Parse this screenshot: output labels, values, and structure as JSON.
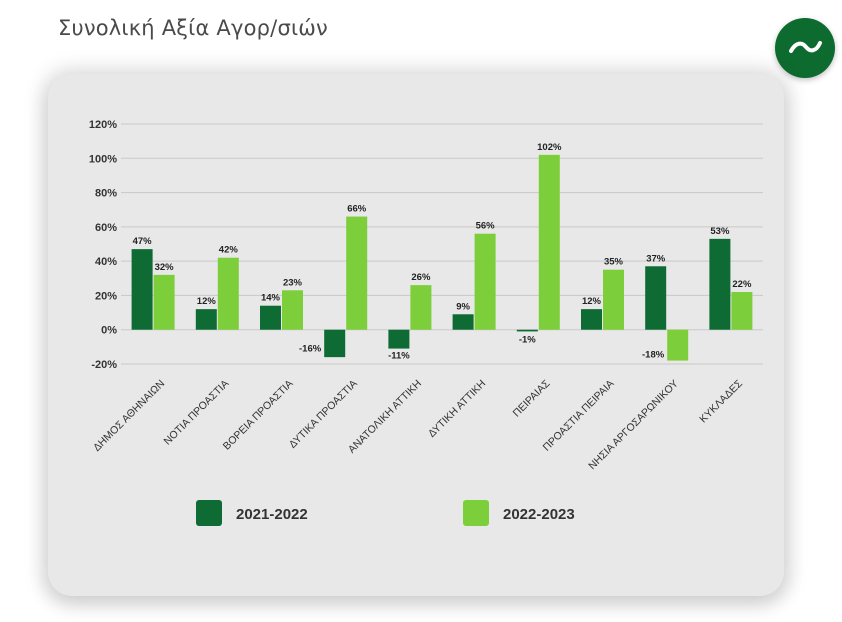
{
  "page": {
    "title": "Συνολική Αξία Αγορ/σιών"
  },
  "colors": {
    "series_2021": "#0d6b33",
    "series_2022": "#7ccf3a",
    "grid": "#c9c9c9",
    "logo": "#0e6b2f"
  },
  "logo": {
    "icon": "tilde-wave-icon"
  },
  "chart_data": {
    "type": "bar",
    "title": "Συνολική Αξία Αγορ/σιών",
    "categories": [
      "ΔΗΜΟΣ ΑΘΗΝΑΙΩΝ",
      "ΝΟΤΙΑ ΠΡΟΑΣΤΙΑ",
      "ΒΟΡΕΙΑ ΠΡΟΑΣΤΙΑ",
      "ΔΥΤΙΚΑ ΠΡΟΑΣΤΙΑ",
      "ΑΝΑΤΟΛΙΚΗ ΑΤΤΙΚΗ",
      "ΔΥΤΙΚΗ ΑΤΤΙΚΗ",
      "ΠΕΙΡΑΙΑΣ",
      "ΠΡΟΑΣΤΙΑ ΠΕΙΡΑΙΑ",
      "ΝΗΣΙΑ ΑΡΓΟΣΑΡΩΝΙΚΟΥ",
      "ΚΥΚΛΑΔΕΣ"
    ],
    "series": [
      {
        "name": "2021-2022",
        "values": [
          47,
          12,
          14,
          -16,
          -11,
          9,
          -1,
          12,
          37,
          53
        ],
        "labels": [
          "47%",
          "12%",
          "14%",
          "-16%",
          "-11%",
          "9%",
          "-1%",
          "12%",
          "37%",
          "53%"
        ]
      },
      {
        "name": "2022-2023",
        "values": [
          32,
          42,
          23,
          66,
          26,
          56,
          102,
          35,
          -18,
          22
        ],
        "labels": [
          "32%",
          "42%",
          "23%",
          "66%",
          "26%",
          "56%",
          "102%",
          "35%",
          "-18%",
          "22%"
        ]
      }
    ],
    "ylim": [
      -20,
      120
    ],
    "yticks": [
      -20,
      0,
      20,
      40,
      60,
      80,
      100,
      120
    ],
    "ytick_labels": [
      "-20%",
      "0%",
      "20%",
      "40%",
      "60%",
      "80%",
      "100%",
      "120%"
    ],
    "grid": true,
    "legend": [
      {
        "name": "2021-2022"
      },
      {
        "name": "2022-2023"
      }
    ],
    "legend_position": "bottom"
  }
}
